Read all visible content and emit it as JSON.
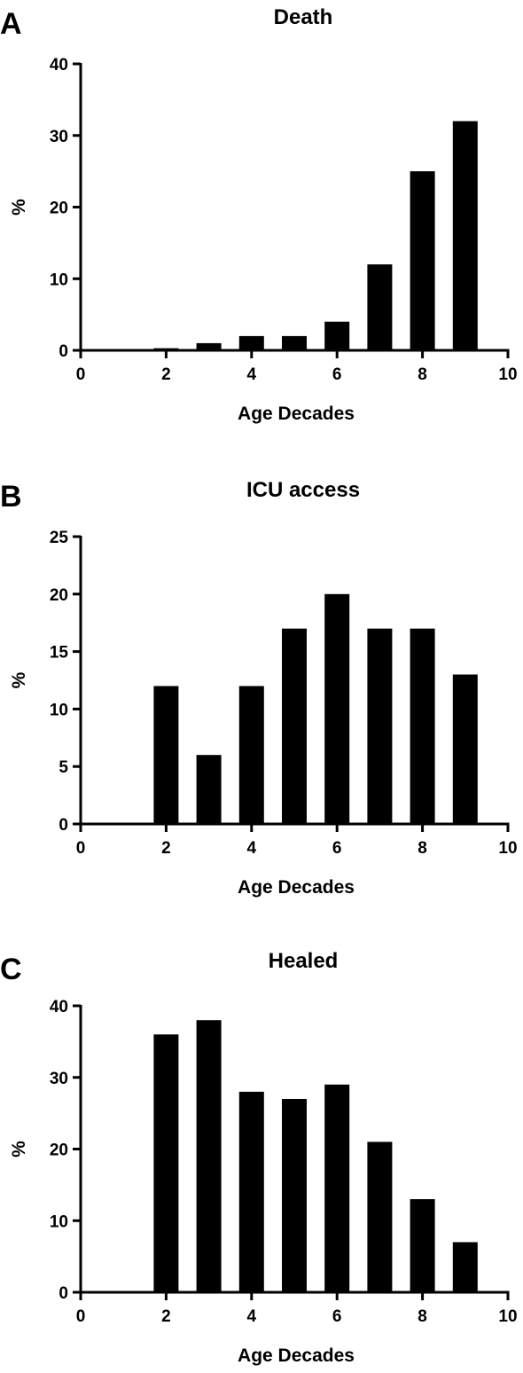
{
  "chart_data": [
    {
      "panel": "A",
      "type": "bar",
      "title": "Death",
      "xlabel": "Age Decades",
      "ylabel": "%",
      "xlim": [
        0,
        10
      ],
      "ylim": [
        0,
        40
      ],
      "xticks": [
        0,
        2,
        4,
        6,
        8,
        10
      ],
      "yticks": [
        0,
        10,
        20,
        30,
        40
      ],
      "x": [
        2,
        3,
        4,
        5,
        6,
        7,
        8,
        9
      ],
      "values": [
        0.3,
        1,
        2,
        2,
        4,
        12,
        25,
        32
      ],
      "grid": false
    },
    {
      "panel": "B",
      "type": "bar",
      "title": "ICU access",
      "xlabel": "Age Decades",
      "ylabel": "%",
      "xlim": [
        0,
        10
      ],
      "ylim": [
        0,
        25
      ],
      "xticks": [
        0,
        2,
        4,
        6,
        8,
        10
      ],
      "yticks": [
        0,
        5,
        10,
        15,
        20,
        25
      ],
      "x": [
        2,
        3,
        4,
        5,
        6,
        7,
        8,
        9
      ],
      "values": [
        12,
        6,
        12,
        17,
        20,
        17,
        17,
        13
      ],
      "grid": false
    },
    {
      "panel": "C",
      "type": "bar",
      "title": "Healed",
      "xlabel": "Age Decades",
      "ylabel": "%",
      "xlim": [
        0,
        10
      ],
      "ylim": [
        0,
        40
      ],
      "xticks": [
        0,
        2,
        4,
        6,
        8,
        10
      ],
      "yticks": [
        0,
        10,
        20,
        30,
        40
      ],
      "x": [
        2,
        3,
        4,
        5,
        6,
        7,
        8,
        9
      ],
      "values": [
        36,
        38,
        28,
        27,
        29,
        21,
        13,
        7
      ],
      "grid": false
    }
  ],
  "colors": {
    "bars": "#000000",
    "axes": "#000000"
  }
}
